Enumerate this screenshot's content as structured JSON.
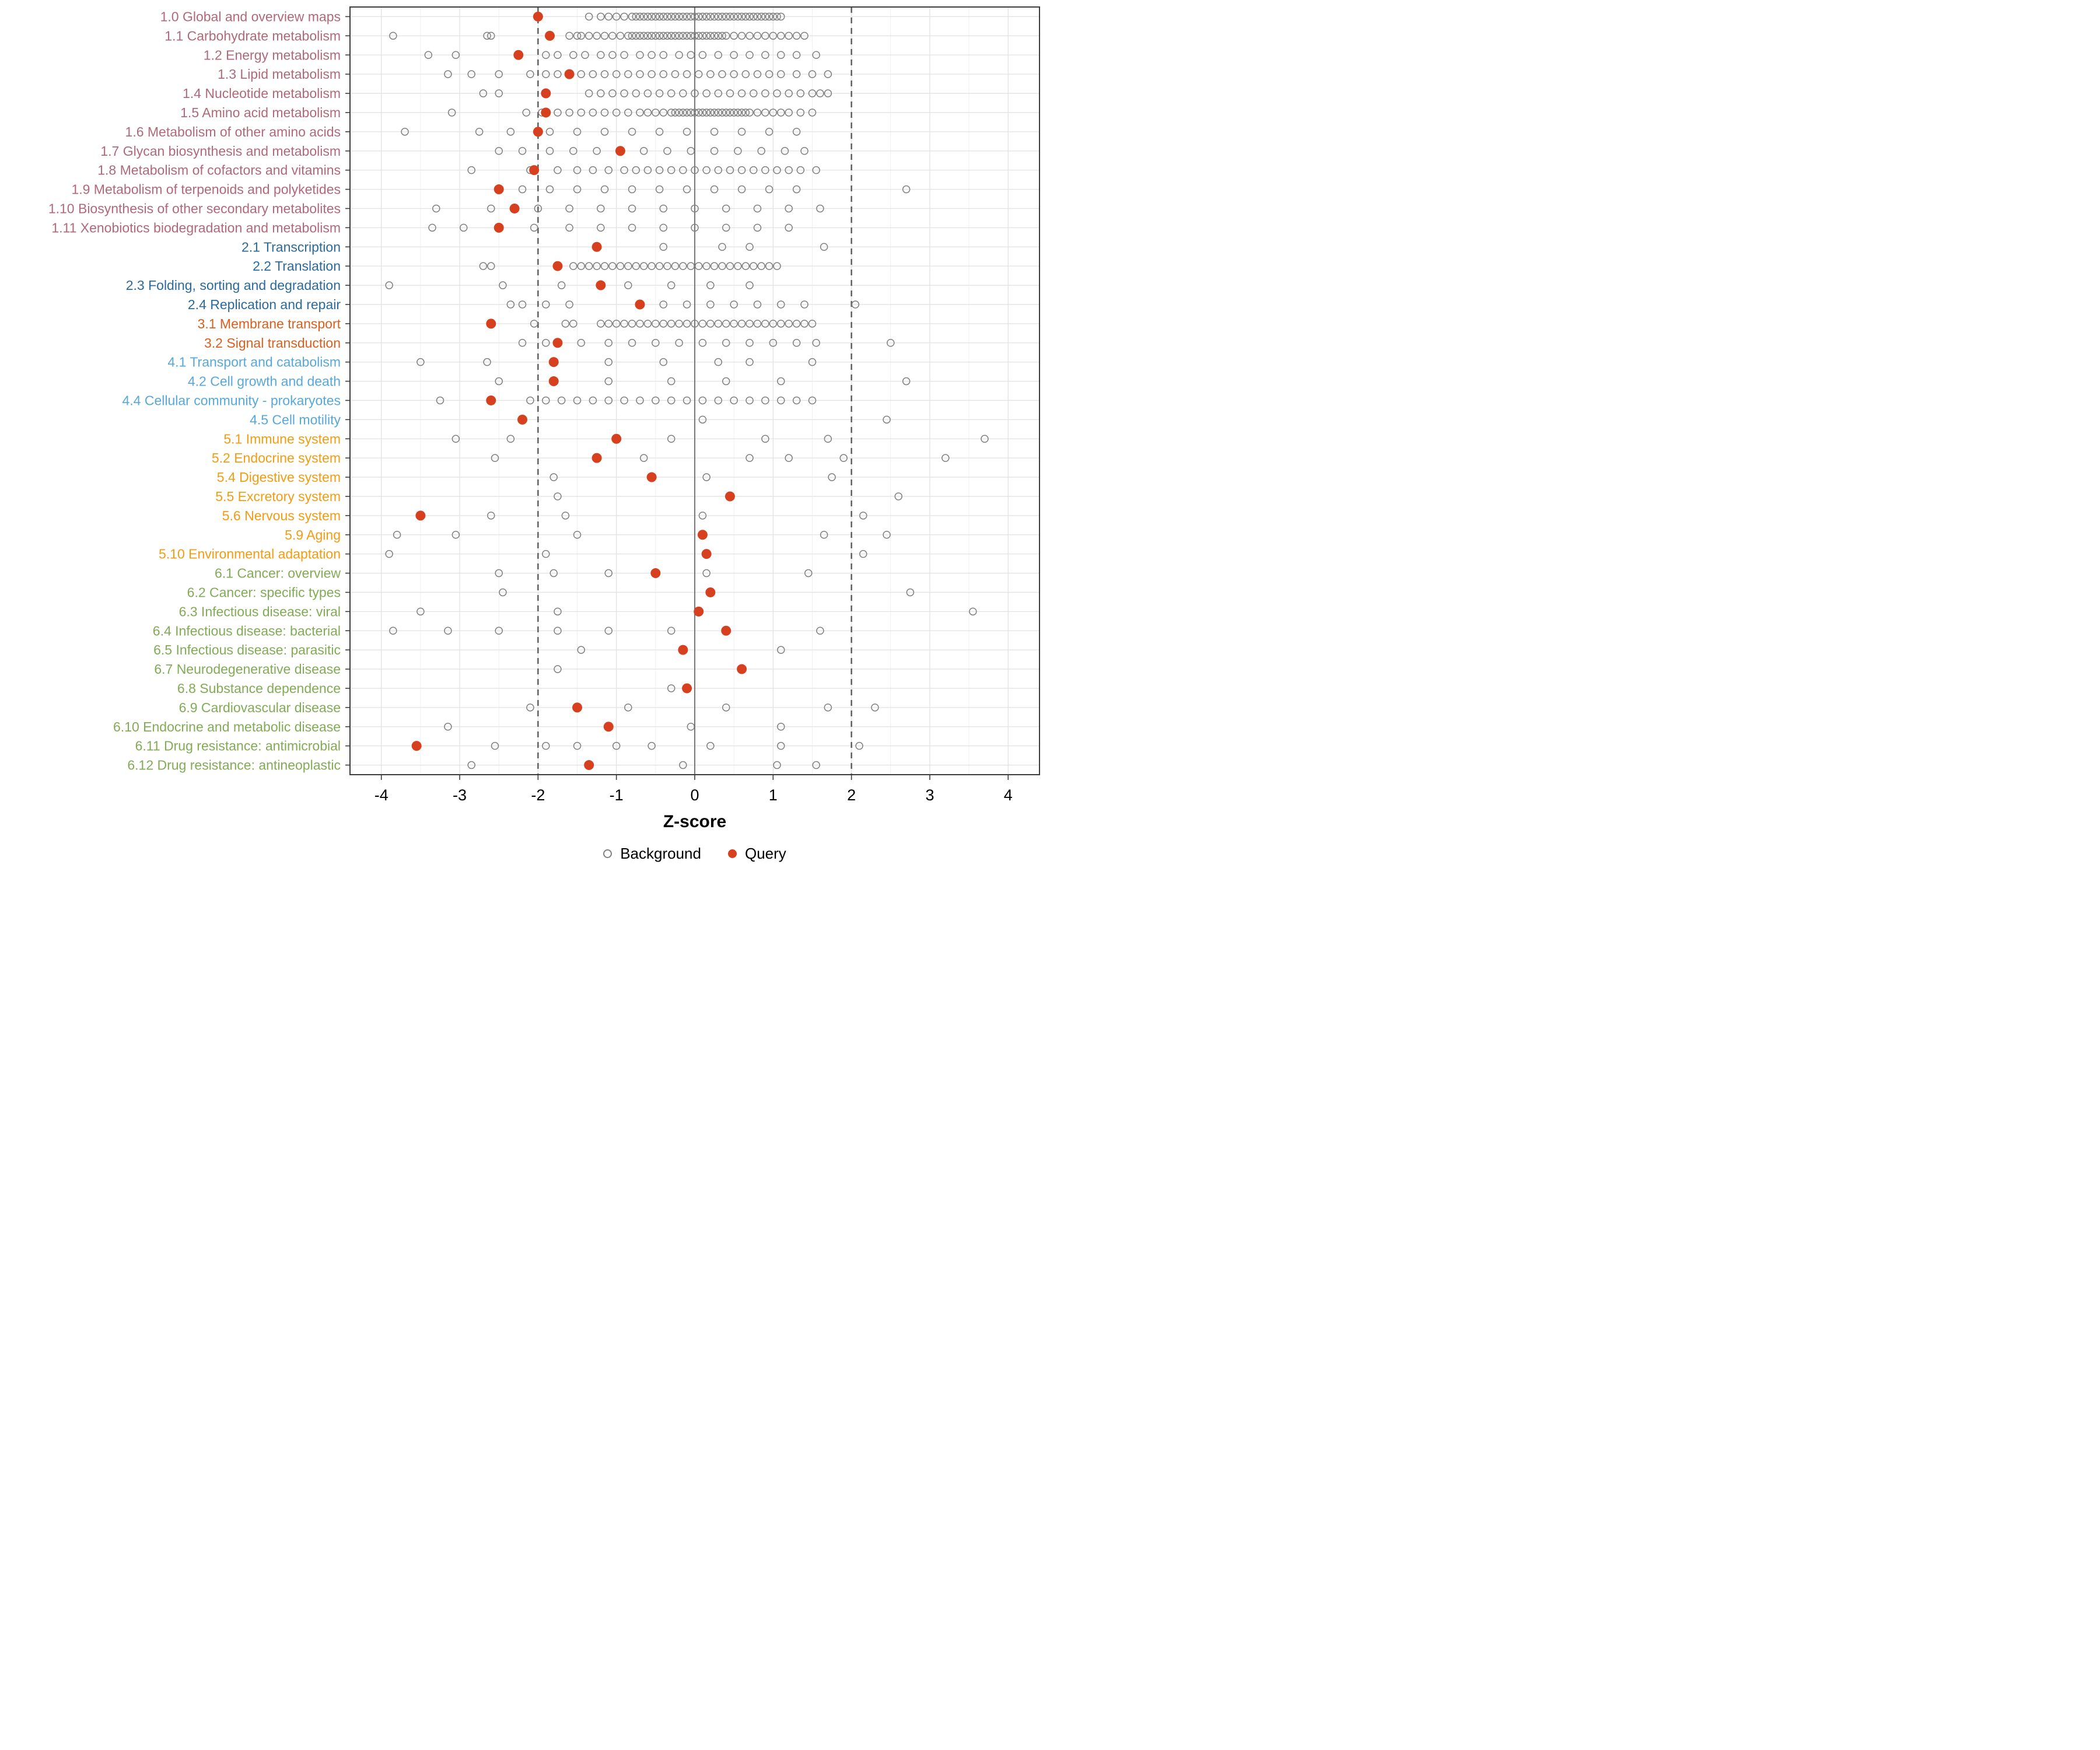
{
  "colors": {
    "group_colors": {
      "1": "#b0697a",
      "2": "#2b6a9b",
      "3": "#d95f1e",
      "4": "#57a8dc",
      "5": "#f39c12",
      "6": "#82ab56"
    },
    "background_stroke": "#808080",
    "query_fill": "#d7401e",
    "grid_major": "#e2e2e2",
    "grid_minor": "#f0f0f0",
    "panel_border": "#3c3c3c",
    "ref_line": "#595959",
    "axis_text": "#000000",
    "panel_bg": "#ffffff"
  },
  "chart_data": {
    "type": "scatter",
    "title": "",
    "xlabel": "Z-score",
    "xlim": [
      -4.4,
      4.4
    ],
    "x_ticks": [
      -4,
      -3,
      -2,
      -1,
      0,
      1,
      2,
      3,
      4
    ],
    "grid": true,
    "legend_position": "bottom",
    "reference_lines": {
      "dashed": [
        -2,
        2
      ],
      "solid": [
        0
      ]
    },
    "legend": [
      {
        "label": "Background",
        "type": "open"
      },
      {
        "label": "Query",
        "type": "filled"
      }
    ],
    "categories": [
      {
        "label": "1.0 Global and overview maps",
        "group": "1",
        "query": -2.0,
        "background": [
          -1.35,
          -1.2,
          -1.1,
          -1.0,
          -0.9,
          -0.8,
          -0.75,
          -0.7,
          -0.65,
          -0.6,
          -0.55,
          -0.5,
          -0.45,
          -0.4,
          -0.35,
          -0.3,
          -0.25,
          -0.2,
          -0.15,
          -0.1,
          -0.05,
          0,
          0.05,
          0.1,
          0.15,
          0.2,
          0.25,
          0.3,
          0.35,
          0.4,
          0.45,
          0.5,
          0.55,
          0.6,
          0.65,
          0.7,
          0.75,
          0.8,
          0.85,
          0.9,
          0.95,
          1.0,
          1.05,
          1.1
        ]
      },
      {
        "label": "1.1 Carbohydrate metabolism",
        "group": "1",
        "query": -1.85,
        "background": [
          -3.85,
          -2.65,
          -2.6,
          -1.6,
          -1.5,
          -1.45,
          -1.35,
          -1.25,
          -1.15,
          -1.05,
          -0.95,
          -0.85,
          -0.8,
          -0.75,
          -0.7,
          -0.65,
          -0.6,
          -0.55,
          -0.5,
          -0.45,
          -0.4,
          -0.35,
          -0.3,
          -0.25,
          -0.2,
          -0.15,
          -0.1,
          -0.05,
          0,
          0.05,
          0.1,
          0.15,
          0.2,
          0.25,
          0.3,
          0.35,
          0.4,
          0.5,
          0.6,
          0.7,
          0.8,
          0.9,
          1.0,
          1.1,
          1.2,
          1.3,
          1.4
        ]
      },
      {
        "label": "1.2 Energy metabolism",
        "group": "1",
        "query": -2.25,
        "background": [
          -3.4,
          -3.05,
          -1.9,
          -1.75,
          -1.55,
          -1.4,
          -1.2,
          -1.05,
          -0.9,
          -0.7,
          -0.55,
          -0.4,
          -0.2,
          -0.05,
          0.1,
          0.3,
          0.5,
          0.7,
          0.9,
          1.1,
          1.3,
          1.55
        ]
      },
      {
        "label": "1.3 Lipid metabolism",
        "group": "1",
        "query": -1.6,
        "background": [
          -3.15,
          -2.85,
          -2.5,
          -2.1,
          -1.9,
          -1.75,
          -1.6,
          -1.45,
          -1.3,
          -1.15,
          -1.0,
          -0.85,
          -0.7,
          -0.55,
          -0.4,
          -0.25,
          -0.1,
          0.05,
          0.2,
          0.35,
          0.5,
          0.65,
          0.8,
          0.95,
          1.1,
          1.3,
          1.5,
          1.7
        ]
      },
      {
        "label": "1.4 Nucleotide metabolism",
        "group": "1",
        "query": -1.9,
        "background": [
          -2.7,
          -2.5,
          -1.35,
          -1.2,
          -1.05,
          -0.9,
          -0.75,
          -0.6,
          -0.45,
          -0.3,
          -0.15,
          0,
          0.15,
          0.3,
          0.45,
          0.6,
          0.75,
          0.9,
          1.05,
          1.2,
          1.35,
          1.5,
          1.6,
          1.7
        ]
      },
      {
        "label": "1.5 Amino acid metabolism",
        "group": "1",
        "query": -1.9,
        "background": [
          -3.1,
          -2.15,
          -1.95,
          -1.75,
          -1.6,
          -1.45,
          -1.3,
          -1.15,
          -1.0,
          -0.85,
          -0.7,
          -0.6,
          -0.5,
          -0.4,
          -0.3,
          -0.25,
          -0.2,
          -0.15,
          -0.1,
          -0.05,
          0,
          0.05,
          0.1,
          0.15,
          0.2,
          0.25,
          0.3,
          0.35,
          0.4,
          0.45,
          0.5,
          0.55,
          0.6,
          0.65,
          0.7,
          0.8,
          0.9,
          1.0,
          1.1,
          1.2,
          1.35,
          1.5
        ]
      },
      {
        "label": "1.6 Metabolism of other amino acids",
        "group": "1",
        "query": -2.0,
        "background": [
          -3.7,
          -2.75,
          -2.35,
          -1.85,
          -1.5,
          -1.15,
          -0.8,
          -0.45,
          -0.1,
          0.25,
          0.6,
          0.95,
          1.3
        ]
      },
      {
        "label": "1.7 Glycan biosynthesis and metabolism",
        "group": "1",
        "query": -0.95,
        "background": [
          -2.5,
          -2.2,
          -1.85,
          -1.55,
          -1.25,
          -0.65,
          -0.35,
          -0.05,
          0.25,
          0.55,
          0.85,
          1.15,
          1.4
        ]
      },
      {
        "label": "1.8 Metabolism of cofactors and vitamins",
        "group": "1",
        "query": -2.05,
        "background": [
          -2.85,
          -2.1,
          -1.75,
          -1.5,
          -1.3,
          -1.1,
          -0.9,
          -0.75,
          -0.6,
          -0.45,
          -0.3,
          -0.15,
          0,
          0.15,
          0.3,
          0.45,
          0.6,
          0.75,
          0.9,
          1.05,
          1.2,
          1.35,
          1.55
        ]
      },
      {
        "label": "1.9 Metabolism of terpenoids and polyketides",
        "group": "1",
        "query": -2.5,
        "background": [
          -2.2,
          -1.85,
          -1.5,
          -1.15,
          -0.8,
          -0.45,
          -0.1,
          0.25,
          0.6,
          0.95,
          1.3,
          2.7
        ]
      },
      {
        "label": "1.10 Biosynthesis of other secondary metabolites",
        "group": "1",
        "query": -2.3,
        "background": [
          -3.3,
          -2.6,
          -2.0,
          -1.6,
          -1.2,
          -0.8,
          -0.4,
          0,
          0.4,
          0.8,
          1.2,
          1.6
        ]
      },
      {
        "label": "1.11 Xenobiotics biodegradation and metabolism",
        "group": "1",
        "query": -2.5,
        "background": [
          -3.35,
          -2.95,
          -2.05,
          -1.6,
          -1.2,
          -0.8,
          -0.4,
          0,
          0.4,
          0.8,
          1.2
        ]
      },
      {
        "label": "2.1 Transcription",
        "group": "2",
        "query": -1.25,
        "background": [
          -0.4,
          0.35,
          0.7,
          1.65
        ]
      },
      {
        "label": "2.2 Translation",
        "group": "2",
        "query": -1.75,
        "background": [
          -2.7,
          -2.6,
          -1.55,
          -1.45,
          -1.35,
          -1.25,
          -1.15,
          -1.05,
          -0.95,
          -0.85,
          -0.75,
          -0.65,
          -0.55,
          -0.45,
          -0.35,
          -0.25,
          -0.15,
          -0.05,
          0.05,
          0.15,
          0.25,
          0.35,
          0.45,
          0.55,
          0.65,
          0.75,
          0.85,
          0.95,
          1.05
        ]
      },
      {
        "label": "2.3 Folding, sorting and degradation",
        "group": "2",
        "query": -1.2,
        "background": [
          -3.9,
          -2.45,
          -1.7,
          -0.85,
          -0.3,
          0.2,
          0.7
        ]
      },
      {
        "label": "2.4 Replication and repair",
        "group": "2",
        "query": -0.7,
        "background": [
          -2.35,
          -2.2,
          -1.9,
          -1.6,
          -0.4,
          -0.1,
          0.2,
          0.5,
          0.8,
          1.1,
          1.4,
          2.05
        ]
      },
      {
        "label": "3.1 Membrane transport",
        "group": "3",
        "query": -2.6,
        "background": [
          -2.05,
          -1.65,
          -1.55,
          -1.2,
          -1.1,
          -1.0,
          -0.9,
          -0.8,
          -0.7,
          -0.6,
          -0.5,
          -0.4,
          -0.3,
          -0.2,
          -0.1,
          0,
          0.1,
          0.2,
          0.3,
          0.4,
          0.5,
          0.6,
          0.7,
          0.8,
          0.9,
          1.0,
          1.1,
          1.2,
          1.3,
          1.4,
          1.5
        ]
      },
      {
        "label": "3.2 Signal transduction",
        "group": "3",
        "query": -1.75,
        "background": [
          -2.2,
          -1.9,
          -1.45,
          -1.1,
          -0.8,
          -0.5,
          -0.2,
          0.1,
          0.4,
          0.7,
          1.0,
          1.3,
          1.55,
          2.5
        ]
      },
      {
        "label": "4.1 Transport and catabolism",
        "group": "4",
        "query": -1.8,
        "background": [
          -3.5,
          -2.65,
          -1.1,
          -0.4,
          0.3,
          0.7,
          1.5
        ]
      },
      {
        "label": "4.2 Cell growth and death",
        "group": "4",
        "query": -1.8,
        "background": [
          -2.5,
          -1.1,
          -0.3,
          0.4,
          1.1,
          2.7
        ]
      },
      {
        "label": "4.4 Cellular community - prokaryotes",
        "group": "4",
        "query": -2.6,
        "background": [
          -3.25,
          -2.1,
          -1.9,
          -1.7,
          -1.5,
          -1.3,
          -1.1,
          -0.9,
          -0.7,
          -0.5,
          -0.3,
          -0.1,
          0.1,
          0.3,
          0.5,
          0.7,
          0.9,
          1.1,
          1.3,
          1.5
        ]
      },
      {
        "label": "4.5 Cell motility",
        "group": "4",
        "query": -2.2,
        "background": [
          0.1,
          2.45
        ]
      },
      {
        "label": "5.1 Immune system",
        "group": "5",
        "query": -1.0,
        "background": [
          -3.05,
          -2.35,
          -0.3,
          0.9,
          1.7,
          3.7
        ]
      },
      {
        "label": "5.2 Endocrine system",
        "group": "5",
        "query": -1.25,
        "background": [
          -2.55,
          -0.65,
          0.7,
          1.2,
          1.9,
          3.2
        ]
      },
      {
        "label": "5.4 Digestive system",
        "group": "5",
        "query": -0.55,
        "background": [
          -1.8,
          0.15,
          1.75
        ]
      },
      {
        "label": "5.5 Excretory system",
        "group": "5",
        "query": 0.45,
        "background": [
          -1.75,
          2.6
        ]
      },
      {
        "label": "5.6 Nervous system",
        "group": "5",
        "query": -3.5,
        "background": [
          -2.6,
          -1.65,
          0.1,
          2.15
        ]
      },
      {
        "label": "5.9 Aging",
        "group": "5",
        "query": 0.1,
        "background": [
          -3.8,
          -3.05,
          -1.5,
          1.65,
          2.45
        ]
      },
      {
        "label": "5.10 Environmental adaptation",
        "group": "5",
        "query": 0.15,
        "background": [
          -3.9,
          -1.9,
          2.15
        ]
      },
      {
        "label": "6.1 Cancer: overview",
        "group": "6",
        "query": -0.5,
        "background": [
          -2.5,
          -1.8,
          -1.1,
          0.15,
          1.45
        ]
      },
      {
        "label": "6.2 Cancer: specific types",
        "group": "6",
        "query": 0.2,
        "background": [
          -2.45,
          2.75
        ]
      },
      {
        "label": "6.3 Infectious disease: viral",
        "group": "6",
        "query": 0.05,
        "background": [
          -3.5,
          -1.75,
          3.55
        ]
      },
      {
        "label": "6.4 Infectious disease: bacterial",
        "group": "6",
        "query": 0.4,
        "background": [
          -3.85,
          -3.15,
          -2.5,
          -1.75,
          -1.1,
          -0.3,
          1.6
        ]
      },
      {
        "label": "6.5 Infectious disease: parasitic",
        "group": "6",
        "query": -0.15,
        "background": [
          -1.45,
          1.1
        ]
      },
      {
        "label": "6.7 Neurodegenerative disease",
        "group": "6",
        "query": 0.6,
        "background": [
          -1.75
        ]
      },
      {
        "label": "6.8 Substance dependence",
        "group": "6",
        "query": -0.1,
        "background": [
          -0.3
        ]
      },
      {
        "label": "6.9 Cardiovascular disease",
        "group": "6",
        "query": -1.5,
        "background": [
          -2.1,
          -0.85,
          0.4,
          1.7,
          2.3
        ]
      },
      {
        "label": "6.10 Endocrine and metabolic disease",
        "group": "6",
        "query": -1.1,
        "background": [
          -3.15,
          -0.05,
          1.1
        ]
      },
      {
        "label": "6.11 Drug resistance: antimicrobial",
        "group": "6",
        "query": -3.55,
        "background": [
          -2.55,
          -1.9,
          -1.5,
          -1.0,
          -0.55,
          0.2,
          1.1,
          2.1
        ]
      },
      {
        "label": "6.12 Drug resistance: antineoplastic",
        "group": "6",
        "query": -1.35,
        "background": [
          -2.85,
          -0.15,
          1.05,
          1.55
        ]
      }
    ]
  }
}
